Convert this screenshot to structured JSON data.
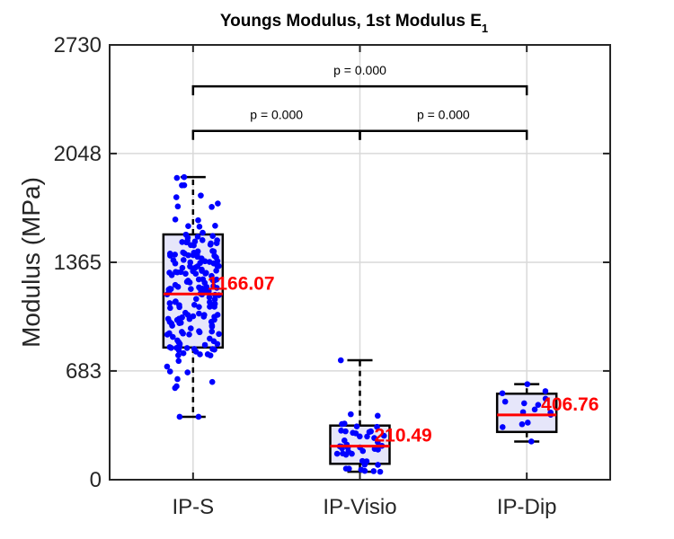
{
  "chart_data": {
    "type": "box",
    "title": "Youngs Modulus, 1st Modulus E",
    "title_subscript": "1",
    "ylabel": "Modulus (MPa)",
    "xlabel": "",
    "ylim": [
      0,
      2730
    ],
    "yticks": [
      0,
      683,
      1365,
      2048,
      2730
    ],
    "ytick_labels": [
      "0",
      "683",
      "1365",
      "2048",
      "2730"
    ],
    "grid": true,
    "categories": [
      "IP-S",
      "IP-Visio",
      "IP-Dip"
    ],
    "groups": [
      {
        "name": "IP-S",
        "whisker_low": 395,
        "q1": 830,
        "median": 1166.07,
        "q3": 1540,
        "whisker_high": 1900,
        "median_label": "1166.07",
        "n_points": 190
      },
      {
        "name": "IP-Visio",
        "whisker_low": 50,
        "q1": 100,
        "median": 210.49,
        "q3": 340,
        "whisker_high": 750,
        "median_label": "210.49",
        "n_points": 45
      },
      {
        "name": "IP-Dip",
        "whisker_low": 240,
        "q1": 300,
        "median": 406.76,
        "q3": 540,
        "whisker_high": 600,
        "median_label": "406.76",
        "n_points": 15
      }
    ],
    "comparisons": [
      {
        "from": "IP-S",
        "to": "IP-Dip",
        "label": "p = 0.000",
        "y": 2470
      },
      {
        "from": "IP-S",
        "to": "IP-Visio",
        "label": "p = 0.000",
        "y": 2190
      },
      {
        "from": "IP-Visio",
        "to": "IP-Dip",
        "label": "p = 0.000",
        "y": 2190
      }
    ],
    "colors": {
      "box_fill": "#e6e6fa",
      "box_edge": "#000000",
      "median": "#ff0000",
      "points": "#0000ff",
      "grid": "#d9d9d9"
    }
  }
}
